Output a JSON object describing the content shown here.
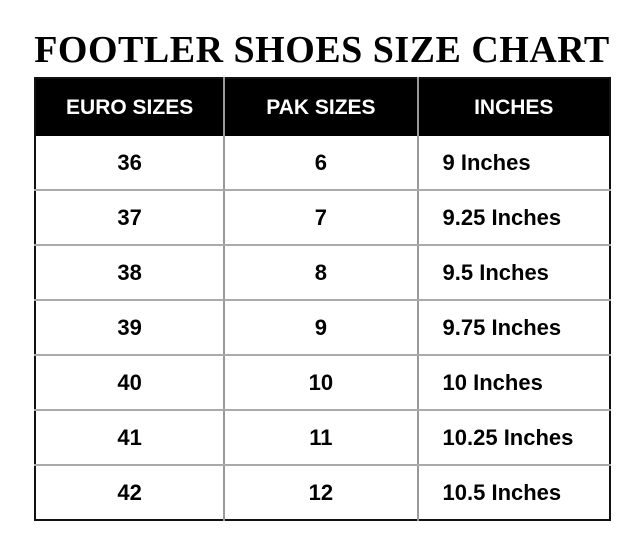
{
  "title": "FOOTLER SHOES SIZE CHART",
  "table": {
    "headers": [
      "EURO SIZES",
      "PAK SIZES",
      "INCHES"
    ],
    "rows": [
      [
        "36",
        "6",
        "9 Inches"
      ],
      [
        "37",
        "7",
        "9.25 Inches"
      ],
      [
        "38",
        "8",
        "9.5 Inches"
      ],
      [
        "39",
        "9",
        "9.75 Inches"
      ],
      [
        "40",
        "10",
        "10 Inches"
      ],
      [
        "41",
        "11",
        "10.25 Inches"
      ],
      [
        "42",
        "12",
        "10.5 Inches"
      ]
    ]
  },
  "colors": {
    "header_bg": "#000000",
    "header_text": "#ffffff",
    "grid": "#999999"
  }
}
